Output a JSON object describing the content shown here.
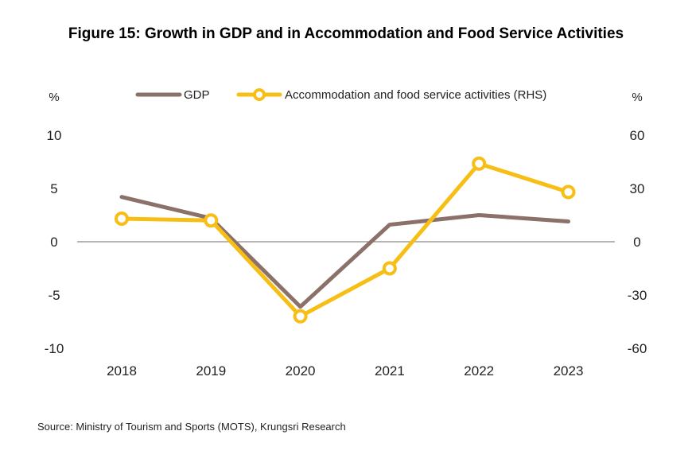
{
  "title": "Figure 15: Growth in GDP and in Accommodation and Food Service Activities",
  "source": "Source: Ministry of Tourism and Sports (MOTS), Krungsri Research",
  "colors": {
    "gdp": "#8B7169",
    "accommodation": "#F7BE16",
    "zero_line": "#7a6a66"
  },
  "chart_data": {
    "type": "line",
    "title": "Figure 15: Growth in GDP and in Accommodation and Food Service Activities",
    "categories": [
      "2018",
      "2019",
      "2020",
      "2021",
      "2022",
      "2023"
    ],
    "left_axis": {
      "label": "%",
      "ylim": [
        -10,
        10
      ],
      "ticks": [
        "10",
        "5",
        "0",
        "-5",
        "-10"
      ]
    },
    "right_axis": {
      "label": "%",
      "ylim": [
        -60,
        60
      ],
      "ticks": [
        "60",
        "30",
        "0",
        "-30",
        "-60"
      ]
    },
    "series": [
      {
        "name": "GDP",
        "axis": "left",
        "values": [
          4.2,
          2.2,
          -6.1,
          1.6,
          2.5,
          1.9
        ]
      },
      {
        "name": "Accommodation and food service activities (RHS)",
        "axis": "right",
        "values": [
          13,
          12,
          -42,
          -15,
          44,
          28
        ]
      }
    ],
    "legend_position": "top",
    "grid": false
  }
}
